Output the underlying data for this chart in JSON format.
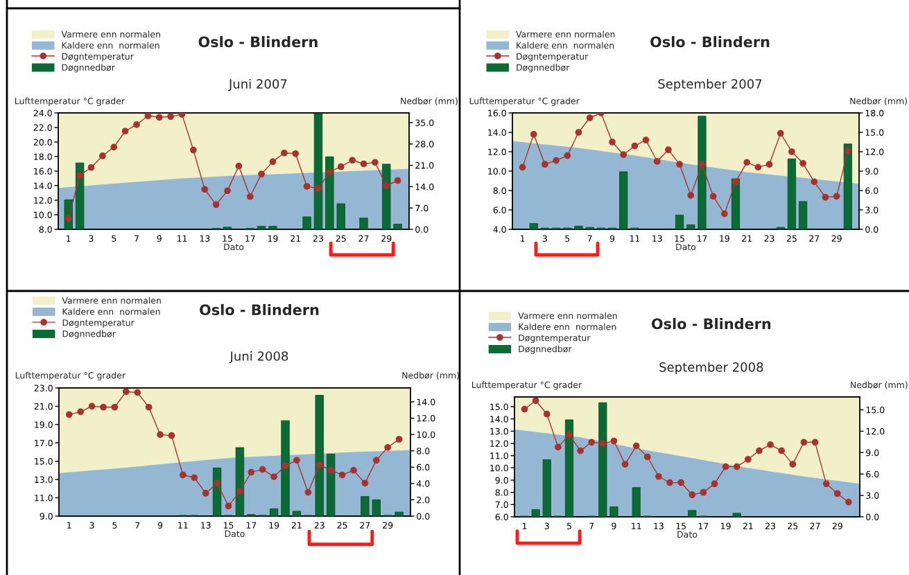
{
  "chart_data": [
    {
      "type": "bar",
      "title": "Oslo - Blindern",
      "subtitle": "Juni 2007",
      "xlabel": "Dato",
      "ylabel": "Lufttemperatur °C grader",
      "y2label": "Nedbør (mm)",
      "legend": "top left",
      "line_style": "solid",
      "x": [
        1,
        2,
        3,
        4,
        5,
        6,
        7,
        8,
        9,
        10,
        11,
        12,
        13,
        14,
        15,
        16,
        17,
        18,
        19,
        20,
        21,
        22,
        23,
        24,
        25,
        26,
        27,
        28,
        29,
        30
      ],
      "xlim": [
        0.1,
        31
      ],
      "xticks": [
        1,
        3,
        5,
        7,
        9,
        11,
        13,
        15,
        17,
        19,
        21,
        23,
        25,
        27,
        29
      ],
      "ylim": [
        8,
        24
      ],
      "yticks": [
        {
          "value": 8,
          "label": "8.0"
        },
        {
          "value": 10,
          "label": "10.0"
        },
        {
          "value": 12,
          "label": "12.0"
        },
        {
          "value": 14,
          "label": "14.0"
        },
        {
          "value": 16,
          "label": "16.0"
        },
        {
          "value": 18,
          "label": "18.0"
        },
        {
          "value": 20,
          "label": "20.0"
        },
        {
          "value": 22,
          "label": "22.0"
        },
        {
          "value": 24,
          "label": "24.0"
        }
      ],
      "y2lim": [
        0,
        38.2
      ],
      "y2ticks": [
        {
          "value": 0,
          "label": "0.0"
        },
        {
          "value": 7,
          "label": "7.0"
        },
        {
          "value": 14,
          "label": "14.0"
        },
        {
          "value": 21,
          "label": "21.0"
        },
        {
          "value": 28,
          "label": "28.0"
        },
        {
          "value": 35,
          "label": "35.0"
        }
      ],
      "bands": [
        {
          "axis": "y",
          "from": 8,
          "to": 24,
          "label": "Varmere enn normalen",
          "color": "#f2f0c8"
        }
      ],
      "series": [
        {
          "name": "Kaldere enn  normalen",
          "type": "area",
          "color": "#94b8d4",
          "x": [
            0.1,
            6,
            11,
            16,
            21,
            26,
            31
          ],
          "values": [
            13.7,
            14.4,
            15.0,
            15.4,
            15.7,
            16.0,
            16.3
          ]
        },
        {
          "name": "Døgntemperatur",
          "type": "line",
          "marker": "circle",
          "color": "#a8322d",
          "values": [
            9.5,
            15.4,
            16.5,
            18.1,
            19.3,
            21.5,
            22.4,
            23.6,
            23.4,
            23.5,
            23.8,
            18.9,
            13.5,
            11.4,
            13.3,
            16.7,
            12.5,
            15.6,
            17.3,
            18.5,
            18.4,
            13.9,
            13.6,
            15.9,
            16.6,
            17.5,
            17.0,
            17.2,
            14.0,
            14.7
          ]
        },
        {
          "name": "Døgnnedbør",
          "axis": "y2",
          "color": "#0b6b35",
          "values": [
            9.7,
            21.8,
            null,
            null,
            null,
            null,
            null,
            null,
            null,
            null,
            null,
            null,
            null,
            0.3,
            0.7,
            null,
            0.3,
            1.0,
            1.0,
            null,
            null,
            4.1,
            38.0,
            23.8,
            8.4,
            null,
            3.7,
            null,
            21.4,
            1.7
          ]
        }
      ]
    },
    {
      "type": "bar",
      "title": "Oslo - Blindern",
      "subtitle": "September 2007",
      "xlabel": "Dato",
      "ylabel": "Lufttemperatur °C grader",
      "y2label": "Nedbør (mm)",
      "legend": "top left",
      "line_style": "solid",
      "x": [
        1,
        2,
        3,
        4,
        5,
        6,
        7,
        8,
        9,
        10,
        11,
        12,
        13,
        14,
        15,
        16,
        17,
        18,
        19,
        20,
        21,
        22,
        23,
        24,
        25,
        26,
        27,
        28,
        29,
        30
      ],
      "xlim": [
        0.1,
        31
      ],
      "xticks": [
        1,
        3,
        5,
        7,
        9,
        11,
        13,
        15,
        17,
        19,
        21,
        23,
        25,
        27,
        29
      ],
      "ylim": [
        4,
        16
      ],
      "yticks": [
        {
          "value": 4,
          "label": "4.0"
        },
        {
          "value": 6,
          "label": "6.0"
        },
        {
          "value": 8,
          "label": "8.0"
        },
        {
          "value": 10,
          "label": "10.0"
        },
        {
          "value": 12,
          "label": "12.0"
        },
        {
          "value": 14,
          "label": "14.0"
        },
        {
          "value": 16,
          "label": "16.0"
        }
      ],
      "y2lim": [
        0,
        18
      ],
      "y2ticks": [
        {
          "value": 0,
          "label": "0.0"
        },
        {
          "value": 3,
          "label": "3.0"
        },
        {
          "value": 6,
          "label": "6.0"
        },
        {
          "value": 9,
          "label": "9.0"
        },
        {
          "value": 12,
          "label": "12.0"
        },
        {
          "value": 15,
          "label": "15.0"
        },
        {
          "value": 18,
          "label": "18.0"
        }
      ],
      "bands": [
        {
          "axis": "y",
          "from": 4,
          "to": 16,
          "label": "Varmere enn normalen",
          "color": "#f2f0c8"
        }
      ],
      "series": [
        {
          "name": "Kaldere enn  normalen",
          "type": "area",
          "color": "#94b8d4",
          "x": [
            0.1,
            6,
            11,
            16,
            21,
            26,
            31
          ],
          "values": [
            13.1,
            12.4,
            11.6,
            10.7,
            9.9,
            9.3,
            8.7
          ]
        },
        {
          "name": "Døgntemperatur",
          "type": "line",
          "marker": "circle",
          "color": "#a8322d",
          "values": [
            10.4,
            13.8,
            10.7,
            11.1,
            11.6,
            14.0,
            15.5,
            16.0,
            13.0,
            11.7,
            12.6,
            13.2,
            11.0,
            12.2,
            10.7,
            7.5,
            10.7,
            7.4,
            5.6,
            8.9,
            10.9,
            10.4,
            10.7,
            13.9,
            12.0,
            10.8,
            8.9,
            7.3,
            7.4,
            12.1
          ]
        },
        {
          "name": "Døgnnedbør",
          "axis": "y2",
          "color": "#0b6b35",
          "values": [
            null,
            0.9,
            0.2,
            0.2,
            0.2,
            0.5,
            0.3,
            0.2,
            0.2,
            8.9,
            0.2,
            null,
            null,
            null,
            2.2,
            0.7,
            17.5,
            null,
            null,
            7.8,
            null,
            null,
            null,
            0.3,
            10.9,
            4.3,
            null,
            null,
            null,
            13.2
          ]
        }
      ]
    },
    {
      "type": "bar",
      "title": "Oslo - Blindern",
      "subtitle": "Juni 2008",
      "xlabel": "Dato",
      "ylabel": "Lufttemperatur °C grader",
      "y2label": "Nedbør (mm)",
      "legend": "top left",
      "line_style": "solid",
      "x": [
        1,
        2,
        3,
        4,
        5,
        6,
        7,
        8,
        9,
        10,
        11,
        12,
        13,
        14,
        15,
        16,
        17,
        18,
        19,
        20,
        21,
        22,
        23,
        24,
        25,
        26,
        27,
        28,
        29,
        30
      ],
      "xlim": [
        0.1,
        31
      ],
      "xticks": [
        1,
        3,
        5,
        7,
        9,
        11,
        13,
        15,
        17,
        19,
        21,
        23,
        25,
        27,
        29
      ],
      "ylim": [
        9,
        23
      ],
      "yticks": [
        {
          "value": 9,
          "label": "9.0"
        },
        {
          "value": 11,
          "label": "11.0"
        },
        {
          "value": 13,
          "label": "13.0"
        },
        {
          "value": 15,
          "label": "15.0"
        },
        {
          "value": 17,
          "label": "17.0"
        },
        {
          "value": 19,
          "label": "19.0"
        },
        {
          "value": 21,
          "label": "21.0"
        },
        {
          "value": 23,
          "label": "23.0"
        }
      ],
      "y2lim": [
        0,
        15.7
      ],
      "y2ticks": [
        {
          "value": 0,
          "label": "0.0"
        },
        {
          "value": 2,
          "label": "2.0"
        },
        {
          "value": 4,
          "label": "4.0"
        },
        {
          "value": 6,
          "label": "6.0"
        },
        {
          "value": 8,
          "label": "8.0"
        },
        {
          "value": 10,
          "label": "10.0"
        },
        {
          "value": 12,
          "label": "12.0"
        },
        {
          "value": 14,
          "label": "14.0"
        }
      ],
      "bands": [
        {
          "axis": "y",
          "from": 9,
          "to": 23,
          "label": "Varmere enn normalen",
          "color": "#f2f0c8"
        }
      ],
      "series": [
        {
          "name": "Kaldere enn  normalen",
          "type": "area",
          "color": "#94b8d4",
          "x": [
            0.1,
            6,
            11,
            15.5,
            21,
            26,
            31
          ],
          "values": [
            13.7,
            14.3,
            14.9,
            15.4,
            15.7,
            16.0,
            16.2
          ]
        },
        {
          "name": "Døgntemperatur",
          "type": "line",
          "marker": "circle",
          "color": "#a8322d",
          "values": [
            20.1,
            20.4,
            21.0,
            20.9,
            20.9,
            22.6,
            22.5,
            20.9,
            17.9,
            17.8,
            13.5,
            13.2,
            11.5,
            12.6,
            10.1,
            11.7,
            13.8,
            14.1,
            13.3,
            14.5,
            15.1,
            11.6,
            14.6,
            14.0,
            13.5,
            14.0,
            12.6,
            15.1,
            16.5,
            17.4
          ]
        },
        {
          "name": "Døgnnedbør",
          "axis": "y2",
          "color": "#0b6b35",
          "values": [
            null,
            null,
            null,
            null,
            null,
            null,
            null,
            null,
            null,
            null,
            0.1,
            0.1,
            null,
            5.9,
            0.1,
            8.4,
            0.2,
            0.1,
            0.9,
            11.7,
            0.6,
            0.1,
            14.8,
            7.6,
            null,
            null,
            2.4,
            2.0,
            0.1,
            0.5
          ]
        }
      ]
    },
    {
      "type": "bar",
      "title": "Oslo - Blindern",
      "subtitle": "September 2008",
      "xlabel": "Dato",
      "ylabel": "Lufttemperatur °C grader",
      "y2label": "Nedbør (mm)",
      "legend": "top left",
      "line_style": "solid",
      "x": [
        1,
        2,
        3,
        4,
        5,
        6,
        7,
        8,
        9,
        10,
        11,
        12,
        13,
        14,
        15,
        16,
        17,
        18,
        19,
        20,
        21,
        22,
        23,
        24,
        25,
        26,
        27,
        28,
        29,
        30
      ],
      "xlim": [
        0.1,
        31
      ],
      "xticks": [
        1,
        3,
        5,
        7,
        9,
        11,
        13,
        15,
        17,
        19,
        21,
        23,
        25,
        27,
        29
      ],
      "ylim": [
        6,
        15.8
      ],
      "yticks": [
        {
          "value": 6,
          "label": "6.0"
        },
        {
          "value": 7,
          "label": "7.0"
        },
        {
          "value": 8,
          "label": "8.0"
        },
        {
          "value": 9,
          "label": "9.0"
        },
        {
          "value": 10,
          "label": "10.0"
        },
        {
          "value": 11,
          "label": "11.0"
        },
        {
          "value": 12,
          "label": "12.0"
        },
        {
          "value": 13,
          "label": "13.0"
        },
        {
          "value": 14,
          "label": "14.0"
        },
        {
          "value": 15,
          "label": "15.0"
        }
      ],
      "y2lim": [
        0,
        16.8
      ],
      "y2ticks": [
        {
          "value": 0,
          "label": "0.0"
        },
        {
          "value": 3,
          "label": "3.0"
        },
        {
          "value": 6,
          "label": "6.0"
        },
        {
          "value": 9,
          "label": "9.0"
        },
        {
          "value": 12,
          "label": "12.0"
        },
        {
          "value": 15,
          "label": "15.0"
        }
      ],
      "bands": [
        {
          "axis": "y",
          "from": 6,
          "to": 15.8,
          "label": "Varmere enn normalen",
          "color": "#f2f0c8"
        }
      ],
      "series": [
        {
          "name": "Kaldere enn  normalen",
          "type": "area",
          "color": "#94b8d4",
          "x": [
            0.1,
            6,
            11,
            16,
            21,
            26,
            31
          ],
          "values": [
            13.15,
            12.5,
            11.6,
            10.8,
            10.0,
            9.3,
            8.7
          ]
        },
        {
          "name": "Døgntemperatur",
          "type": "line",
          "marker": "circle",
          "color": "#a8322d",
          "values": [
            14.8,
            15.5,
            14.4,
            11.7,
            12.7,
            11.4,
            12.1,
            12.0,
            12.2,
            10.3,
            11.8,
            10.9,
            9.3,
            8.8,
            8.8,
            7.8,
            8.0,
            8.7,
            10.1,
            10.1,
            10.7,
            11.4,
            11.9,
            11.4,
            10.3,
            12.1,
            12.1,
            8.7,
            7.9,
            7.2
          ]
        },
        {
          "name": "Døgnnedbør",
          "axis": "y2",
          "color": "#0b6b35",
          "values": [
            0.1,
            1.0,
            8.0,
            0.1,
            13.6,
            null,
            0.1,
            16.0,
            1.4,
            null,
            4.1,
            0.1,
            null,
            null,
            null,
            0.9,
            0.1,
            null,
            null,
            0.5,
            null,
            null,
            null,
            null,
            null,
            null,
            null,
            null,
            null,
            null
          ]
        }
      ]
    }
  ]
}
